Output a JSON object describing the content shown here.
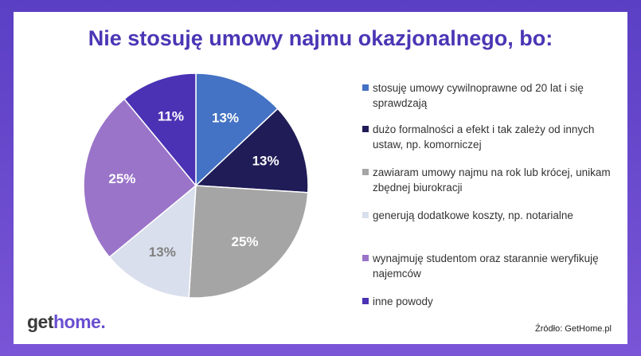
{
  "chart_data": {
    "type": "pie",
    "title": "Nie stosuję umowy najmu okazjonalnego, bo:",
    "slices": [
      {
        "label": "stosuję umowy cywilnoprawne od 20 lat i się sprawdzają",
        "value": 13,
        "display": "13%",
        "color": "#4472c4",
        "text_color": "#ffffff"
      },
      {
        "label": "dużo formalności a efekt i tak zależy od innych ustaw, np. komorniczej",
        "value": 13,
        "display": "13%",
        "color": "#201c57",
        "text_color": "#ffffff"
      },
      {
        "label": "zawiaram umowy najmu na rok lub krócej, unikam zbędnej biurokracji",
        "value": 25,
        "display": "25%",
        "color": "#a5a5a5",
        "text_color": "#ffffff"
      },
      {
        "label": "generują dodatkowe koszty, np. notarialne",
        "value": 13,
        "display": "13%",
        "color": "#d9dfec",
        "text_color": "#808080"
      },
      {
        "label": "wynajmuję studentom oraz starannie weryfikuję najemców",
        "value": 25,
        "display": "25%",
        "color": "#9a74c9",
        "text_color": "#ffffff"
      },
      {
        "label": "inne powody",
        "value": 11,
        "display": "11%",
        "color": "#4b32b4",
        "text_color": "#ffffff"
      }
    ],
    "legend_position": "right"
  },
  "logo": {
    "part1": "get",
    "part2": "home",
    "part3": "."
  },
  "source": "Źródło: GetHome.pl"
}
